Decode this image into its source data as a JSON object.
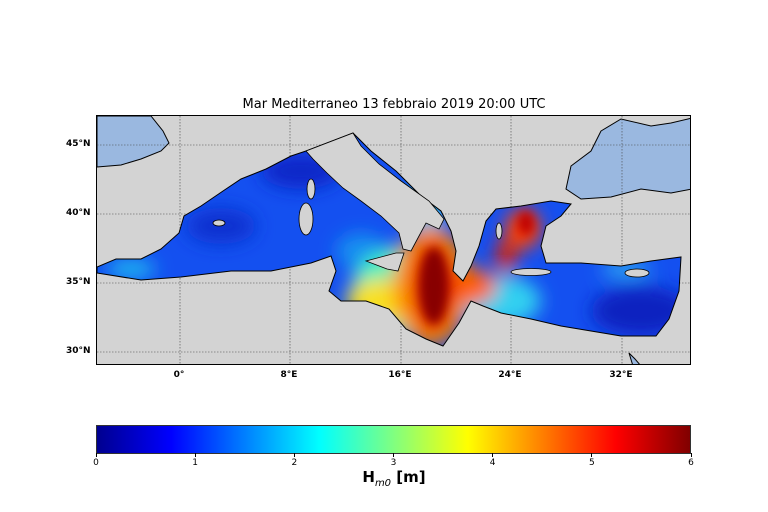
{
  "title": "Mar Mediterraneo 13 febbraio 2019  20:00 UTC",
  "map": {
    "projection": "equirectangular",
    "lon_range_deg": [
      -6,
      37.2
    ],
    "lat_range_deg": [
      29,
      47.1
    ],
    "gridlines": true,
    "land_color": "#d3d3d3",
    "outside_water_color": "#9ab8e0",
    "lon_ticks": [
      "0°",
      "8°E",
      "16°E",
      "24°E",
      "32°E"
    ],
    "lat_ticks": [
      "45°N",
      "40°N",
      "35°N",
      "30°N"
    ]
  },
  "colorbar": {
    "colormap": "jet",
    "range": [
      0,
      6
    ],
    "ticks": [
      "0",
      "1",
      "2",
      "3",
      "4",
      "5",
      "6"
    ],
    "label_main": "H",
    "label_sub": "m0",
    "label_unit": "[m]"
  }
}
